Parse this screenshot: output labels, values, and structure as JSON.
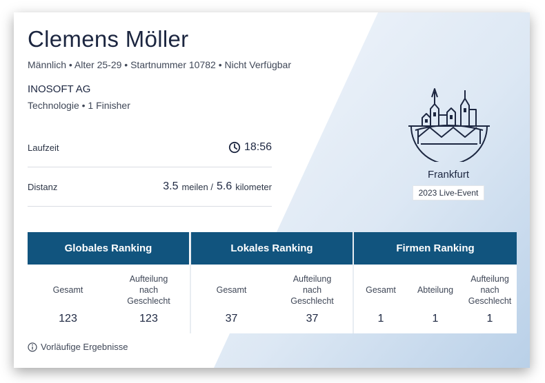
{
  "runner": {
    "name": "Clemens Möller",
    "meta": "Männlich • Alter 25-29 • Startnummer 10782 • Nicht Verfügbar",
    "company": "INOSOFT AG",
    "company_sub": "Technologie • 1 Finisher"
  },
  "stats": {
    "time_label": "Laufzeit",
    "time_value": "18:56",
    "distance_label": "Distanz",
    "distance_miles": "3.5",
    "distance_miles_unit": "meilen /",
    "distance_km": "5.6",
    "distance_km_unit": "kilometer"
  },
  "event": {
    "city": "Frankfurt",
    "label": "2023 Live-Event"
  },
  "rankings": {
    "global": {
      "title": "Globales Ranking",
      "overall_label": "Gesamt",
      "overall_value": "123",
      "gender_label": "Aufteilung nach Geschlecht",
      "gender_value": "123"
    },
    "local": {
      "title": "Lokales Ranking",
      "overall_label": "Gesamt",
      "overall_value": "37",
      "gender_label": "Aufteilung nach Geschlecht",
      "gender_value": "37"
    },
    "company": {
      "title": "Firmen Ranking",
      "overall_label": "Gesamt",
      "overall_value": "1",
      "division_label": "Abteilung",
      "division_value": "1",
      "gender_label": "Aufteilung nach Geschlecht",
      "gender_value": "1"
    }
  },
  "footer": {
    "note": "Vorläufige Ergebnisse"
  },
  "colors": {
    "header_bg": "#11547e",
    "text_dark": "#1c2640",
    "wedge_light": "#eef3fa",
    "wedge_dark": "#c5d8ec"
  },
  "icons": [
    "clock-icon",
    "frankfurt-skyline-icon",
    "info-icon"
  ]
}
